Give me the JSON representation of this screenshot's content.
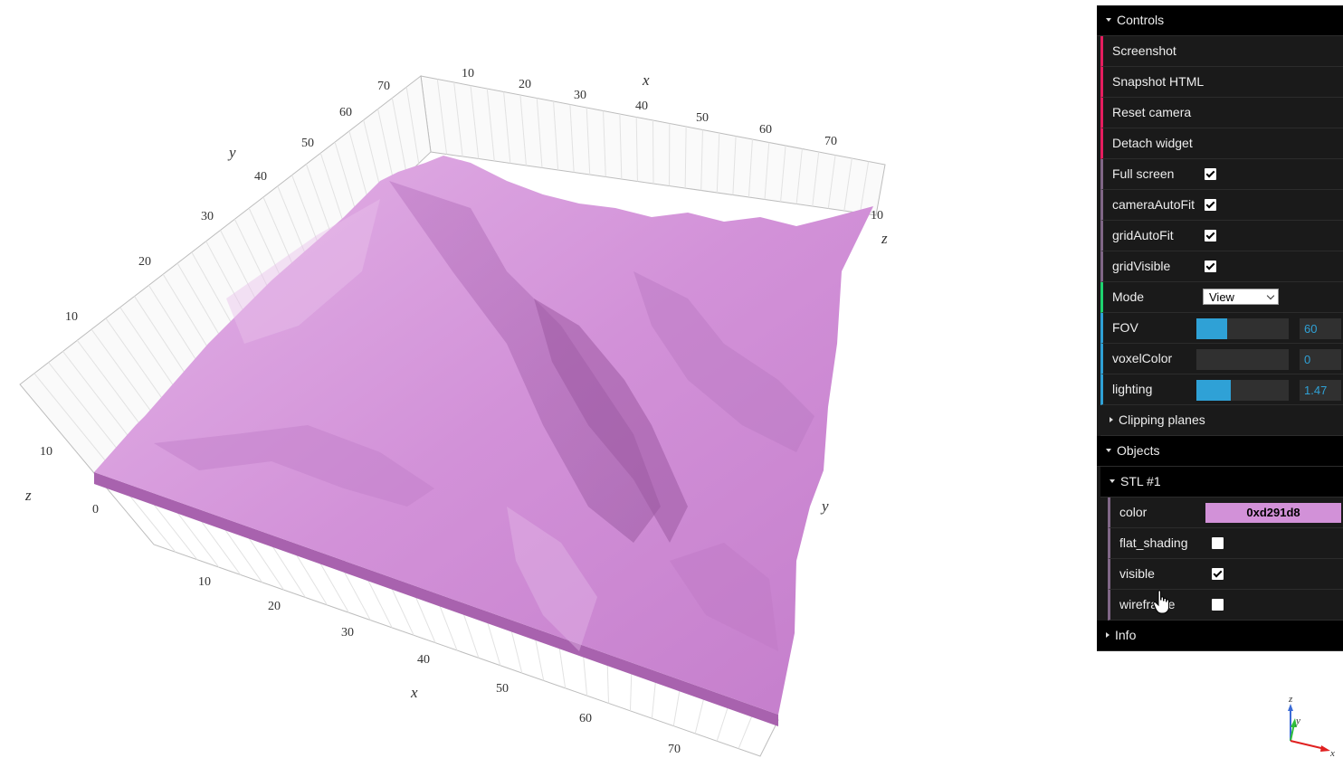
{
  "plot": {
    "axis_labels": {
      "x": "x",
      "y": "y",
      "z": "z"
    },
    "x_ticks_top": [
      "10",
      "20",
      "30",
      "40",
      "50",
      "60",
      "70"
    ],
    "x_ticks_bottom": [
      "10",
      "20",
      "30",
      "40",
      "50",
      "60",
      "70"
    ],
    "y_ticks_left": [
      "10",
      "20",
      "30",
      "40",
      "50",
      "60",
      "70"
    ],
    "z_ticks_left": [
      "0",
      "10"
    ],
    "z_ticks_right": [
      "10"
    ],
    "surface_color": "#d291d8"
  },
  "gui": {
    "controls_title": "Controls",
    "screenshot": "Screenshot",
    "snapshot_html": "Snapshot HTML",
    "reset_camera": "Reset camera",
    "detach_widget": "Detach widget",
    "full_screen": {
      "label": "Full screen",
      "checked": true
    },
    "camera_auto_fit": {
      "label": "cameraAutoFit",
      "checked": true
    },
    "grid_auto_fit": {
      "label": "gridAutoFit",
      "checked": true
    },
    "grid_visible": {
      "label": "gridVisible",
      "checked": true
    },
    "mode": {
      "label": "Mode",
      "value": "View"
    },
    "fov": {
      "label": "FOV",
      "value": "60",
      "fraction": 0.33
    },
    "voxel_color": {
      "label": "voxelColor",
      "value": "0",
      "fraction": 0
    },
    "lighting": {
      "label": "lighting",
      "value": "1.47",
      "fraction": 0.37
    },
    "clipping_planes": "Clipping planes",
    "objects_title": "Objects",
    "stl_title": "STL #1",
    "color": {
      "label": "color",
      "value": "0xd291d8",
      "hex": "#d291d8"
    },
    "flat_shading": {
      "label": "flat_shading",
      "checked": false
    },
    "visible": {
      "label": "visible",
      "checked": true
    },
    "wireframe": {
      "label": "wireframe",
      "checked": false
    },
    "info": "Info"
  },
  "axes_helper": {
    "x": "x",
    "y": "y",
    "z": "z"
  }
}
